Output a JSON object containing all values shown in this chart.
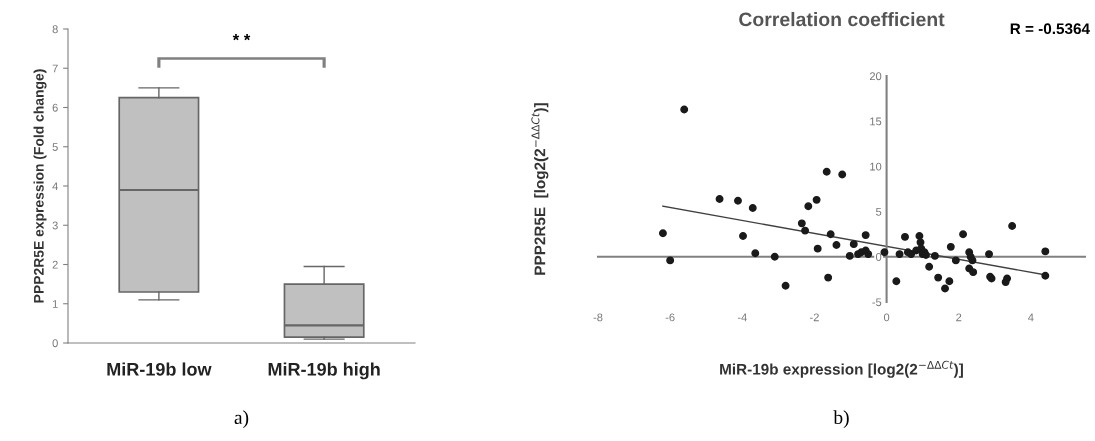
{
  "chart_data": [
    {
      "type": "box",
      "ylabel": "PPP2R5E expression (Fold change)",
      "categories": [
        "MiR-19b low",
        "MiR-19b high"
      ],
      "series": [
        {
          "color": "#c0c0c0",
          "boxes": [
            {
              "low": 1.1,
              "q1": 1.3,
              "median": 3.9,
              "q3": 6.25,
              "high": 6.5
            },
            {
              "low": 0.1,
              "q1": 0.15,
              "median": 0.45,
              "q3": 1.5,
              "high": 1.95
            }
          ]
        }
      ],
      "ylim": [
        0,
        8
      ],
      "yticks": [
        0,
        1,
        2,
        3,
        4,
        5,
        6,
        7,
        8
      ],
      "grid": false,
      "annotations": [
        "* *",
        "a)"
      ]
    },
    {
      "type": "scatter",
      "title": "Correlation coefficient",
      "xlabel": "MiR-19b expression [log2(2$^{−ΔΔCt}$)]",
      "ylabel": "PPP2R5E  [log2(2$^{−ΔΔCt}$)]",
      "series": [
        {
          "type": "scatter",
          "color": "#1a1a1a",
          "marker": "circle",
          "x": [
            -5.61,
            -6.2,
            -6.0,
            -4.63,
            -4.12,
            -3.71,
            -3.98,
            -3.64,
            -3.1,
            -2.8,
            -2.35,
            -2.26,
            -2.17,
            -1.94,
            -1.91,
            -1.66,
            -1.23,
            -1.55,
            -1.39,
            -1.62,
            -1.02,
            -0.91,
            -0.79,
            -0.7,
            -0.58,
            -0.58,
            -0.51,
            -0.06,
            0.27,
            0.36,
            0.51,
            0.59,
            0.68,
            0.82,
            0.91,
            0.94,
            0.96,
            1.0,
            1.05,
            1.09,
            1.18,
            1.34,
            1.43,
            1.62,
            1.74,
            1.78,
            1.92,
            2.12,
            2.29,
            2.33,
            2.38,
            2.29,
            2.4,
            2.84,
            2.87,
            2.91,
            3.3,
            3.34,
            3.48,
            4.4,
            4.4
          ],
          "values": [
            16.3,
            2.6,
            -0.4,
            6.4,
            6.2,
            5.4,
            2.3,
            0.4,
            0,
            -3.2,
            3.7,
            2.9,
            5.6,
            6.3,
            0.9,
            9.4,
            9.1,
            2.5,
            1.3,
            -2.3,
            0.1,
            1.4,
            0.3,
            0.5,
            2.4,
            0.7,
            0.3,
            0.5,
            -2.7,
            0.3,
            2.2,
            0.5,
            0.3,
            0.7,
            2.3,
            1.6,
            0.9,
            0.3,
            0.5,
            0.2,
            -1.1,
            0.1,
            -2.3,
            -3.5,
            -2.7,
            1.1,
            -0.4,
            2.5,
            0.5,
            0,
            -0.4,
            -1.3,
            -1.7,
            0.3,
            -2.2,
            -2.4,
            -2.8,
            -2.4,
            3.4,
            0.6,
            -2.1
          ]
        },
        {
          "type": "line",
          "color": "#404040",
          "line_style": "solid",
          "x": [
            -6.2,
            4.4
          ],
          "values": [
            5.6,
            -2.0
          ]
        }
      ],
      "xlim": [
        -8,
        5.5
      ],
      "xticks": [
        -8,
        -6,
        -4,
        -2,
        0,
        2,
        4
      ],
      "ylim": [
        -5,
        20
      ],
      "yticks": [
        -5,
        0,
        5,
        10,
        15,
        20
      ],
      "annotations": [
        "R = -0.5364",
        "b)"
      ]
    }
  ]
}
